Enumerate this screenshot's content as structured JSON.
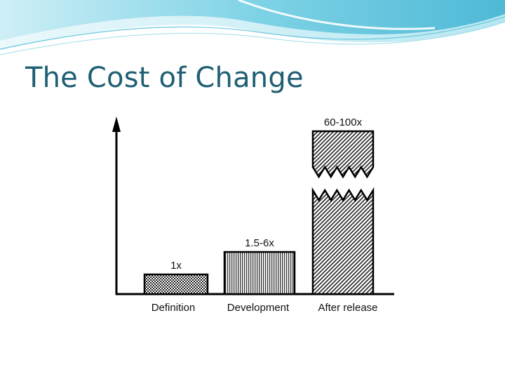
{
  "slide": {
    "title": "The Cost of Change"
  },
  "chart_data": {
    "type": "bar",
    "title": "",
    "xlabel": "",
    "ylabel": "",
    "categories": [
      "Definition",
      "Development",
      "After release"
    ],
    "values": [
      1,
      4,
      80
    ],
    "data_labels": [
      "1x",
      "1.5-6x",
      "60-100x"
    ],
    "value_ranges": [
      [
        1,
        1
      ],
      [
        1.5,
        6
      ],
      [
        60,
        100
      ]
    ],
    "axis_break": {
      "category": "After release"
    },
    "grid": false,
    "legend": "none"
  }
}
